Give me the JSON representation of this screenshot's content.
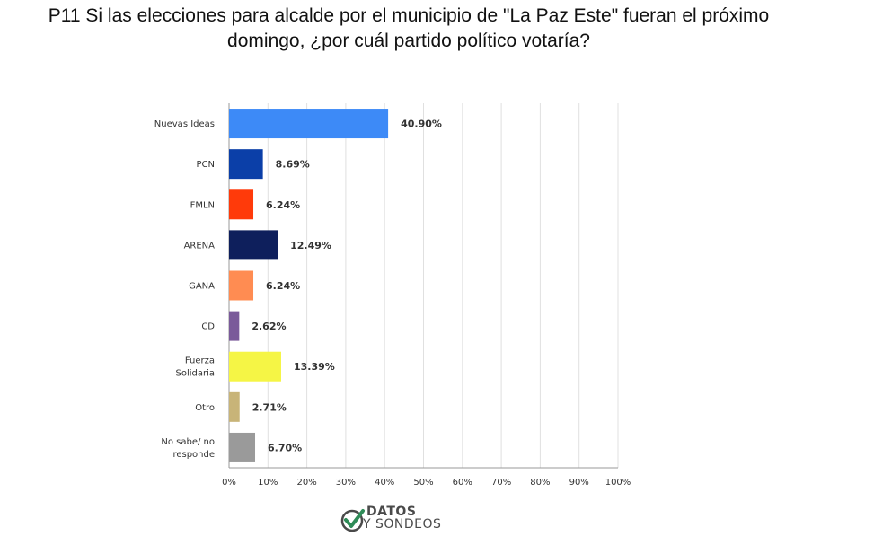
{
  "title_lines": [
    "P11 Si las elecciones para alcalde por el municipio de \"La Paz Este\" fueran el próximo",
    "domingo, ¿por cuál partido político votaría?"
  ],
  "chart_data": {
    "type": "bar",
    "orientation": "horizontal",
    "categories": [
      [
        "Nuevas Ideas"
      ],
      [
        "PCN"
      ],
      [
        "FMLN"
      ],
      [
        "ARENA"
      ],
      [
        "GANA"
      ],
      [
        "CD"
      ],
      [
        "Fuerza",
        "Solidaria"
      ],
      [
        "Otro"
      ],
      [
        "No sabe/ no",
        "responde"
      ]
    ],
    "values": [
      40.9,
      8.69,
      6.24,
      12.49,
      6.24,
      2.62,
      13.39,
      2.71,
      6.7
    ],
    "value_labels": [
      "40.90%",
      "8.69%",
      "6.24%",
      "12.49%",
      "6.24%",
      "2.62%",
      "13.39%",
      "2.71%",
      "6.70%"
    ],
    "colors": [
      "#3d8af7",
      "#0b3fa8",
      "#ff3a0a",
      "#0e1f5c",
      "#ff8c52",
      "#7a5a9a",
      "#f5f545",
      "#c8b478",
      "#9a9a9a"
    ],
    "xlim": [
      0,
      100
    ],
    "x_ticks": [
      "0%",
      "10%",
      "20%",
      "30%",
      "40%",
      "50%",
      "60%",
      "70%",
      "80%",
      "90%",
      "100%"
    ],
    "grid": true
  },
  "logo": {
    "line1": "DATOS",
    "line2": "Y SONDEOS",
    "mark_color": "#2e8b57",
    "text_color": "#4a4a4a"
  }
}
